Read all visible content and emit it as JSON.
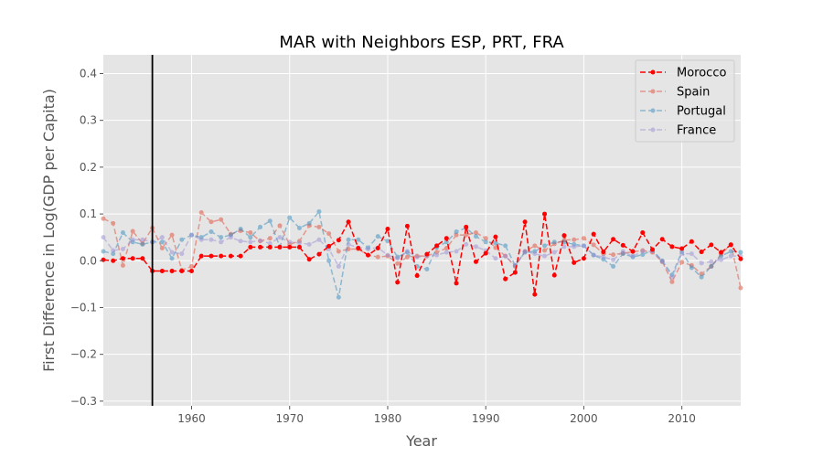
{
  "chart_data": {
    "type": "line",
    "title": "MAR with Neighbors ESP, PRT, FRA",
    "xlabel": "Year",
    "ylabel": "First Difference in Log(GDP per Capita)",
    "xlim": [
      1951,
      2016
    ],
    "ylim": [
      -0.31,
      0.44
    ],
    "xticks": [
      1960,
      1970,
      1980,
      1990,
      2000,
      2010
    ],
    "yticks": [
      -0.3,
      -0.2,
      -0.1,
      0.0,
      0.1,
      0.2,
      0.3,
      0.4
    ],
    "ytick_labels": [
      "−0.3",
      "−0.2",
      "−0.1",
      "0.0",
      "0.1",
      "0.2",
      "0.3",
      "0.4"
    ],
    "grid": true,
    "legend_position": "top-right",
    "vline_x": 1956,
    "series": [
      {
        "name": "Morocco",
        "color": "#ff0000",
        "alpha": 1.0,
        "x": [
          1951,
          1952,
          1953,
          1954,
          1955,
          1956,
          1957,
          1958,
          1959,
          1960,
          1961,
          1962,
          1963,
          1964,
          1965,
          1966,
          1967,
          1968,
          1969,
          1970,
          1971,
          1972,
          1973,
          1974,
          1975,
          1976,
          1977,
          1978,
          1979,
          1980,
          1981,
          1982,
          1983,
          1984,
          1985,
          1986,
          1987,
          1988,
          1989,
          1990,
          1991,
          1992,
          1993,
          1994,
          1995,
          1996,
          1997,
          1998,
          1999,
          2000,
          2001,
          2002,
          2003,
          2004,
          2005,
          2006,
          2007,
          2008,
          2009,
          2010,
          2011,
          2012,
          2013,
          2014,
          2015,
          2016
        ],
        "y": [
          0.002,
          0.0,
          0.005,
          0.005,
          0.005,
          -0.022,
          -0.022,
          -0.022,
          -0.022,
          -0.022,
          0.01,
          0.01,
          0.01,
          0.01,
          0.01,
          0.029,
          0.029,
          0.029,
          0.029,
          0.029,
          0.029,
          0.003,
          0.014,
          0.031,
          0.044,
          0.083,
          0.027,
          0.012,
          0.027,
          0.068,
          -0.046,
          0.074,
          -0.032,
          0.014,
          0.032,
          0.048,
          -0.048,
          0.072,
          -0.002,
          0.016,
          0.051,
          -0.039,
          -0.025,
          0.083,
          -0.072,
          0.1,
          -0.031,
          0.054,
          -0.004,
          0.005,
          0.057,
          0.019,
          0.046,
          0.033,
          0.02,
          0.06,
          0.024,
          0.046,
          0.03,
          0.026,
          0.041,
          0.019,
          0.034,
          0.018,
          0.034,
          0.004
        ]
      },
      {
        "name": "Spain",
        "color": "#e24a33",
        "alpha": 0.5,
        "x": [
          1951,
          1952,
          1953,
          1954,
          1955,
          1956,
          1957,
          1958,
          1959,
          1960,
          1961,
          1962,
          1963,
          1964,
          1965,
          1966,
          1967,
          1968,
          1969,
          1970,
          1971,
          1972,
          1973,
          1974,
          1975,
          1976,
          1977,
          1978,
          1979,
          1980,
          1981,
          1982,
          1983,
          1984,
          1985,
          1986,
          1987,
          1988,
          1989,
          1990,
          1991,
          1992,
          1993,
          1994,
          1995,
          1996,
          1997,
          1998,
          1999,
          2000,
          2001,
          2002,
          2003,
          2004,
          2005,
          2006,
          2007,
          2008,
          2009,
          2010,
          2011,
          2012,
          2013,
          2014,
          2015,
          2016
        ],
        "y": [
          0.09,
          0.08,
          -0.01,
          0.063,
          0.037,
          0.07,
          0.027,
          0.055,
          -0.02,
          -0.012,
          0.103,
          0.083,
          0.088,
          0.057,
          0.064,
          0.06,
          0.042,
          0.048,
          0.075,
          0.035,
          0.042,
          0.075,
          0.072,
          0.058,
          0.02,
          0.025,
          0.025,
          0.012,
          0.008,
          0.01,
          -0.006,
          0.008,
          0.01,
          0.01,
          0.018,
          0.027,
          0.055,
          0.055,
          0.06,
          0.048,
          0.028,
          0.01,
          -0.012,
          0.02,
          0.032,
          0.022,
          0.036,
          0.044,
          0.045,
          0.048,
          0.034,
          0.015,
          0.013,
          0.016,
          0.019,
          0.022,
          0.018,
          -0.002,
          -0.045,
          -0.003,
          -0.01,
          -0.028,
          -0.012,
          0.014,
          0.035,
          -0.058
        ]
      },
      {
        "name": "Portugal",
        "color": "#348abd",
        "alpha": 0.5,
        "x": [
          1951,
          1952,
          1953,
          1954,
          1955,
          1956,
          1957,
          1958,
          1959,
          1960,
          1961,
          1962,
          1963,
          1964,
          1965,
          1966,
          1967,
          1968,
          1969,
          1970,
          1971,
          1972,
          1973,
          1974,
          1975,
          1976,
          1977,
          1978,
          1979,
          1980,
          1981,
          1982,
          1983,
          1984,
          1985,
          1986,
          1987,
          1988,
          1989,
          1990,
          1991,
          1992,
          1993,
          1994,
          1995,
          1996,
          1997,
          1998,
          1999,
          2000,
          2001,
          2002,
          2003,
          2004,
          2005,
          2006,
          2007,
          2008,
          2009,
          2010,
          2011,
          2012,
          2013,
          2014,
          2015,
          2016
        ],
        "y": [
          0.02,
          0.015,
          0.06,
          0.04,
          0.035,
          0.04,
          0.04,
          0.005,
          0.045,
          0.055,
          0.05,
          0.062,
          0.05,
          0.055,
          0.068,
          0.05,
          0.072,
          0.085,
          0.03,
          0.092,
          0.07,
          0.08,
          0.105,
          0.0,
          -0.078,
          0.045,
          0.045,
          0.028,
          0.052,
          0.042,
          0.008,
          0.018,
          -0.012,
          -0.018,
          0.028,
          0.04,
          0.062,
          0.07,
          0.052,
          0.04,
          0.038,
          0.032,
          -0.01,
          0.018,
          0.02,
          0.032,
          0.04,
          0.04,
          0.035,
          0.032,
          0.012,
          0.003,
          -0.012,
          0.015,
          0.008,
          0.013,
          0.023,
          0.0,
          -0.03,
          0.019,
          -0.015,
          -0.035,
          -0.012,
          0.01,
          0.02,
          0.018
        ]
      },
      {
        "name": "France",
        "color": "#988ed5",
        "alpha": 0.5,
        "x": [
          1951,
          1952,
          1953,
          1954,
          1955,
          1956,
          1957,
          1958,
          1959,
          1960,
          1961,
          1962,
          1963,
          1964,
          1965,
          1966,
          1967,
          1968,
          1969,
          1970,
          1971,
          1972,
          1973,
          1974,
          1975,
          1976,
          1977,
          1978,
          1979,
          1980,
          1981,
          1982,
          1983,
          1984,
          1985,
          1986,
          1987,
          1988,
          1989,
          1990,
          1991,
          1992,
          1993,
          1994,
          1995,
          1996,
          1997,
          1998,
          1999,
          2000,
          2001,
          2002,
          2003,
          2004,
          2005,
          2006,
          2007,
          2008,
          2009,
          2010,
          2011,
          2012,
          2013,
          2014,
          2015,
          2016
        ],
        "y": [
          0.05,
          0.022,
          0.025,
          0.045,
          0.045,
          0.04,
          0.05,
          0.018,
          0.015,
          0.055,
          0.045,
          0.045,
          0.04,
          0.05,
          0.042,
          0.04,
          0.043,
          0.037,
          0.05,
          0.04,
          0.038,
          0.035,
          0.045,
          0.025,
          -0.012,
          0.035,
          0.028,
          0.025,
          0.028,
          0.012,
          0.005,
          0.02,
          0.008,
          0.01,
          0.012,
          0.018,
          0.02,
          0.035,
          0.03,
          0.022,
          0.005,
          0.01,
          -0.01,
          0.02,
          0.015,
          0.01,
          0.018,
          0.03,
          0.03,
          0.032,
          0.012,
          0.008,
          0.002,
          0.02,
          0.01,
          0.02,
          0.02,
          -0.002,
          -0.035,
          0.015,
          0.015,
          -0.005,
          -0.002,
          0.002,
          0.01,
          0.01
        ]
      }
    ]
  }
}
